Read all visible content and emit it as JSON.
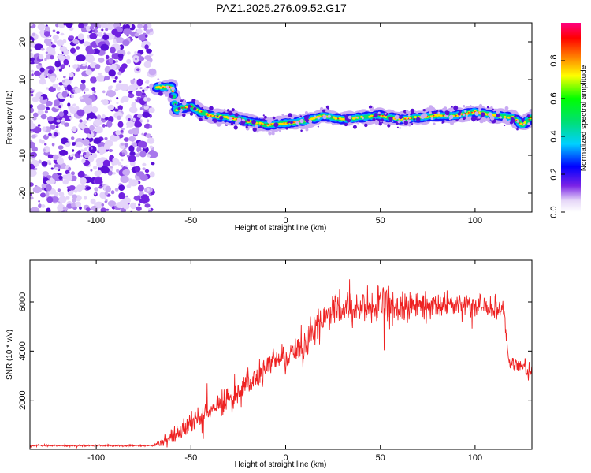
{
  "title": "PAZ1.2025.276.09.52.G17",
  "chart_data": [
    {
      "type": "heatmap",
      "xlabel": "Height of straight line (km)",
      "ylabel": "Frequency (Hz)",
      "xlim": [
        -135,
        130
      ],
      "ylim": [
        -25,
        25
      ],
      "xticks": [
        -100,
        -50,
        0,
        50,
        100
      ],
      "xtick_labels": [
        "-100",
        "-50",
        "0",
        "50",
        "100"
      ],
      "yticks": [
        20,
        10,
        0,
        -10,
        -20
      ],
      "ytick_labels": [
        "20",
        "10",
        "0",
        "-10",
        "-20"
      ],
      "colorbar": {
        "label": "Normalized spectral amplitude",
        "range": [
          0,
          1
        ],
        "ticks": [
          0,
          0.2,
          0.4,
          0.6,
          0.8
        ],
        "tick_labels": [
          "0.0",
          "0.2",
          "0.4",
          "0.6",
          "0.8"
        ]
      },
      "noise_region_x": [
        -135,
        -70
      ],
      "signal_track": {
        "x": [
          -68,
          -60,
          -58,
          -50,
          -45,
          -40,
          -30,
          -20,
          -10,
          0,
          10,
          20,
          30,
          40,
          50,
          60,
          70,
          80,
          90,
          100,
          110,
          120,
          125,
          130
        ],
        "freq": [
          8,
          8,
          2,
          3,
          1.5,
          0.5,
          0,
          -1,
          -2,
          -1.5,
          -1,
          0.5,
          -0.5,
          0,
          0.5,
          -0.5,
          0,
          0.5,
          0.5,
          1.5,
          0.5,
          0,
          -2,
          0
        ]
      },
      "grid": false
    },
    {
      "type": "line",
      "xlabel": "Height of straight line (km)",
      "ylabel": "SNR (10 * v/v)",
      "xlim": [
        -135,
        130
      ],
      "ylim": [
        0,
        7700
      ],
      "xticks": [
        -100,
        -50,
        0,
        50,
        100
      ],
      "xtick_labels": [
        "-100",
        "-50",
        "0",
        "50",
        "100"
      ],
      "yticks": [
        2000,
        4000,
        6000
      ],
      "ytick_labels": [
        "2000",
        "4000",
        "6000"
      ],
      "color": "#ee2222",
      "series_envelope": {
        "x": [
          -135,
          -70,
          -65,
          -60,
          -50,
          -40,
          -30,
          -20,
          -10,
          0,
          10,
          15,
          20,
          30,
          40,
          50,
          60,
          70,
          80,
          90,
          100,
          110,
          115,
          118,
          125,
          130
        ],
        "mean": [
          150,
          150,
          300,
          600,
          1000,
          1500,
          2100,
          2700,
          3300,
          3800,
          4300,
          4900,
          5300,
          5700,
          5800,
          5800,
          5800,
          5800,
          5900,
          5900,
          5900,
          5800,
          5800,
          3500,
          3400,
          3200
        ],
        "spread": [
          60,
          60,
          300,
          600,
          800,
          800,
          800,
          800,
          900,
          900,
          1000,
          1000,
          1000,
          1100,
          1100,
          1100,
          1000,
          900,
          700,
          600,
          600,
          700,
          700,
          500,
          500,
          500
        ]
      },
      "grid": false
    }
  ]
}
